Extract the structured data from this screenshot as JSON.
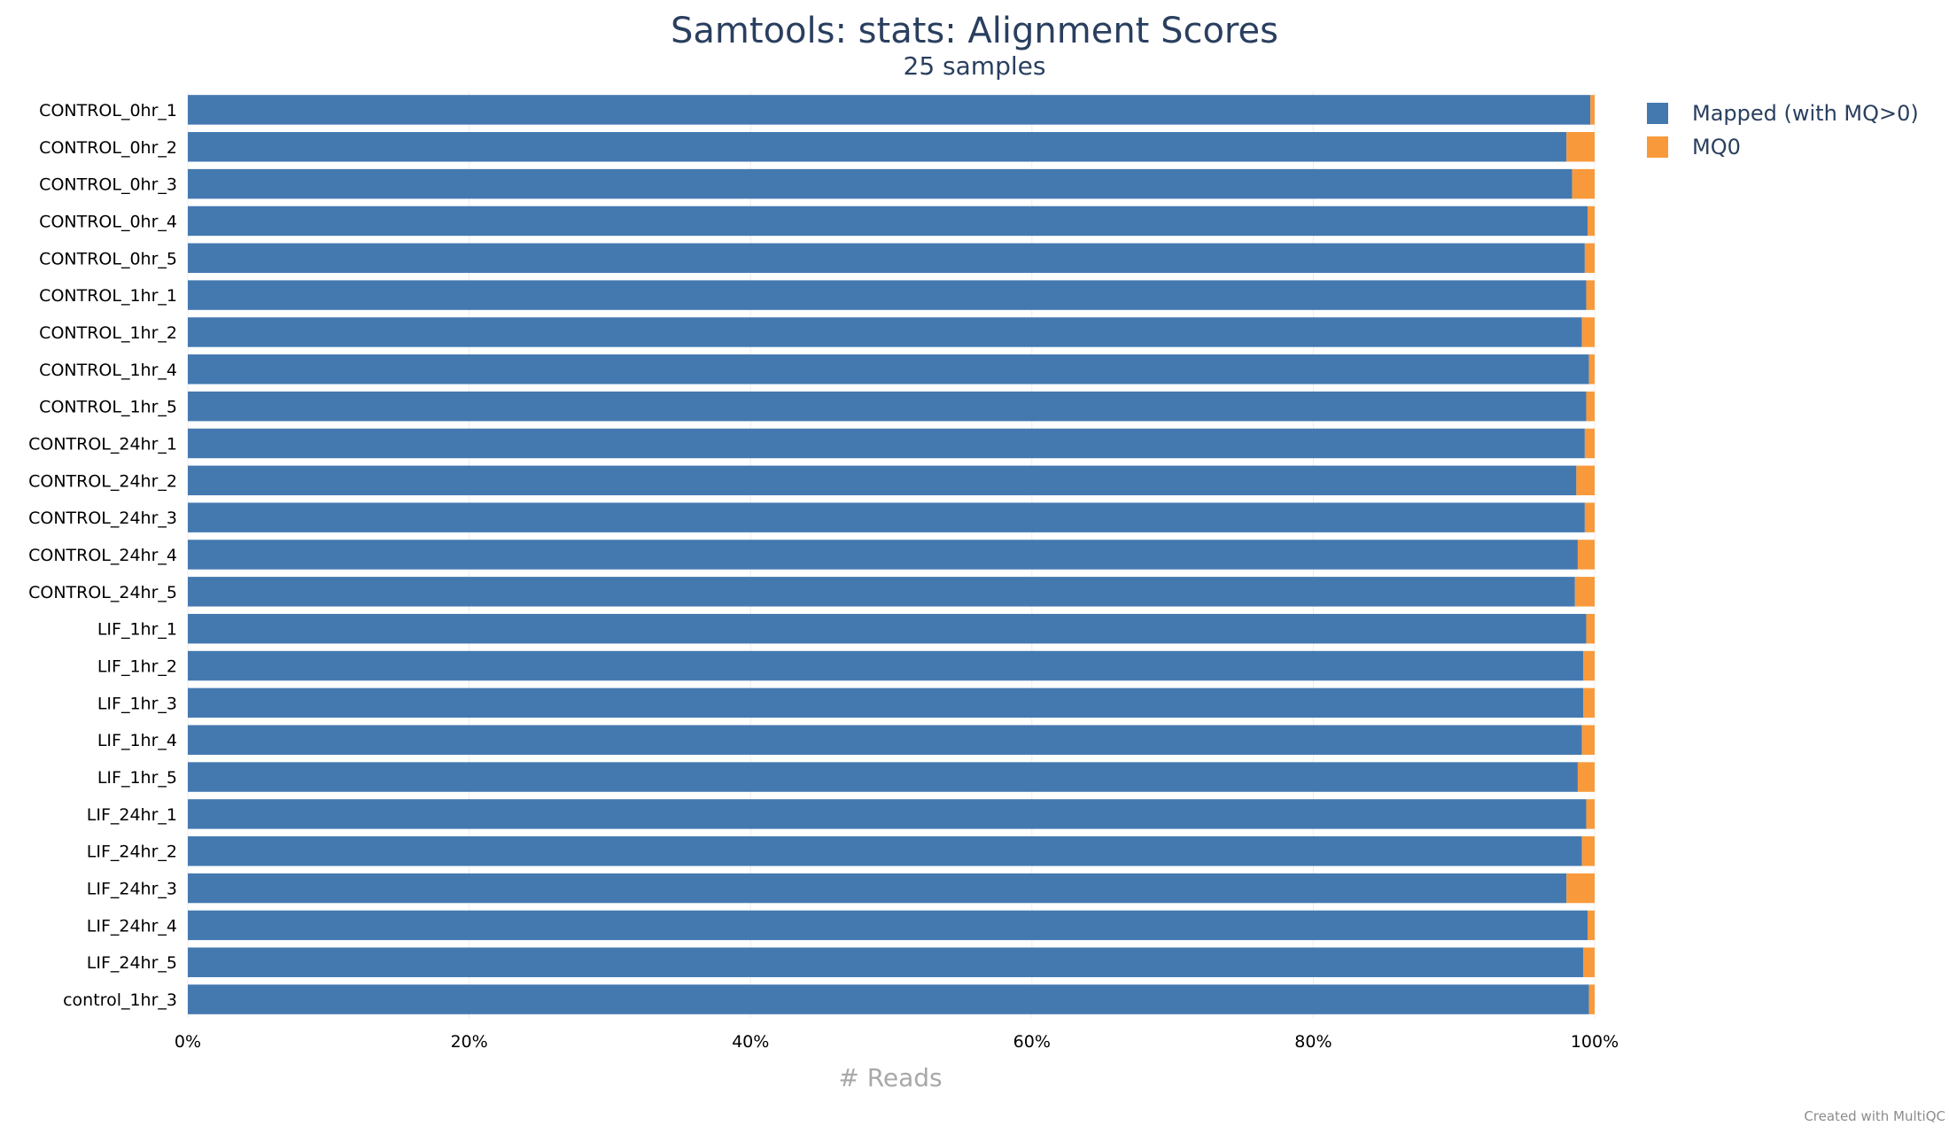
{
  "chart_data": {
    "type": "bar",
    "orientation": "horizontal",
    "stacked": true,
    "title": "Samtools: stats: Alignment Scores",
    "subtitle": "25 samples",
    "xlabel": "# Reads",
    "ylabel": "",
    "xlim": [
      0,
      100
    ],
    "x_tick_labels": [
      "0%",
      "20%",
      "40%",
      "60%",
      "80%",
      "100%"
    ],
    "x_tick_values": [
      0,
      20,
      40,
      60,
      80,
      100
    ],
    "grid": true,
    "legend_position": "top-right",
    "categories": [
      "CONTROL_0hr_1",
      "CONTROL_0hr_2",
      "CONTROL_0hr_3",
      "CONTROL_0hr_4",
      "CONTROL_0hr_5",
      "CONTROL_1hr_1",
      "CONTROL_1hr_2",
      "CONTROL_1hr_4",
      "CONTROL_1hr_5",
      "CONTROL_24hr_1",
      "CONTROL_24hr_2",
      "CONTROL_24hr_3",
      "CONTROL_24hr_4",
      "CONTROL_24hr_5",
      "LIF_1hr_1",
      "LIF_1hr_2",
      "LIF_1hr_3",
      "LIF_1hr_4",
      "LIF_1hr_5",
      "LIF_24hr_1",
      "LIF_24hr_2",
      "LIF_24hr_3",
      "LIF_24hr_4",
      "LIF_24hr_5",
      "control_1hr_3"
    ],
    "series": [
      {
        "name": "Mapped (with MQ>0)",
        "color": "#4479b0",
        "values": [
          99.7,
          98.0,
          98.4,
          99.5,
          99.3,
          99.4,
          99.1,
          99.6,
          99.4,
          99.3,
          98.7,
          99.3,
          98.8,
          98.6,
          99.4,
          99.2,
          99.2,
          99.1,
          98.8,
          99.4,
          99.1,
          98.0,
          99.5,
          99.2,
          99.6
        ]
      },
      {
        "name": "MQ0",
        "color": "#f89a3b",
        "values": [
          0.3,
          2.0,
          1.6,
          0.5,
          0.7,
          0.6,
          0.9,
          0.4,
          0.6,
          0.7,
          1.3,
          0.7,
          1.2,
          1.4,
          0.6,
          0.8,
          0.8,
          0.9,
          1.2,
          0.6,
          0.9,
          2.0,
          0.5,
          0.8,
          0.4
        ]
      }
    ]
  },
  "credit": "Created with MultiQC"
}
